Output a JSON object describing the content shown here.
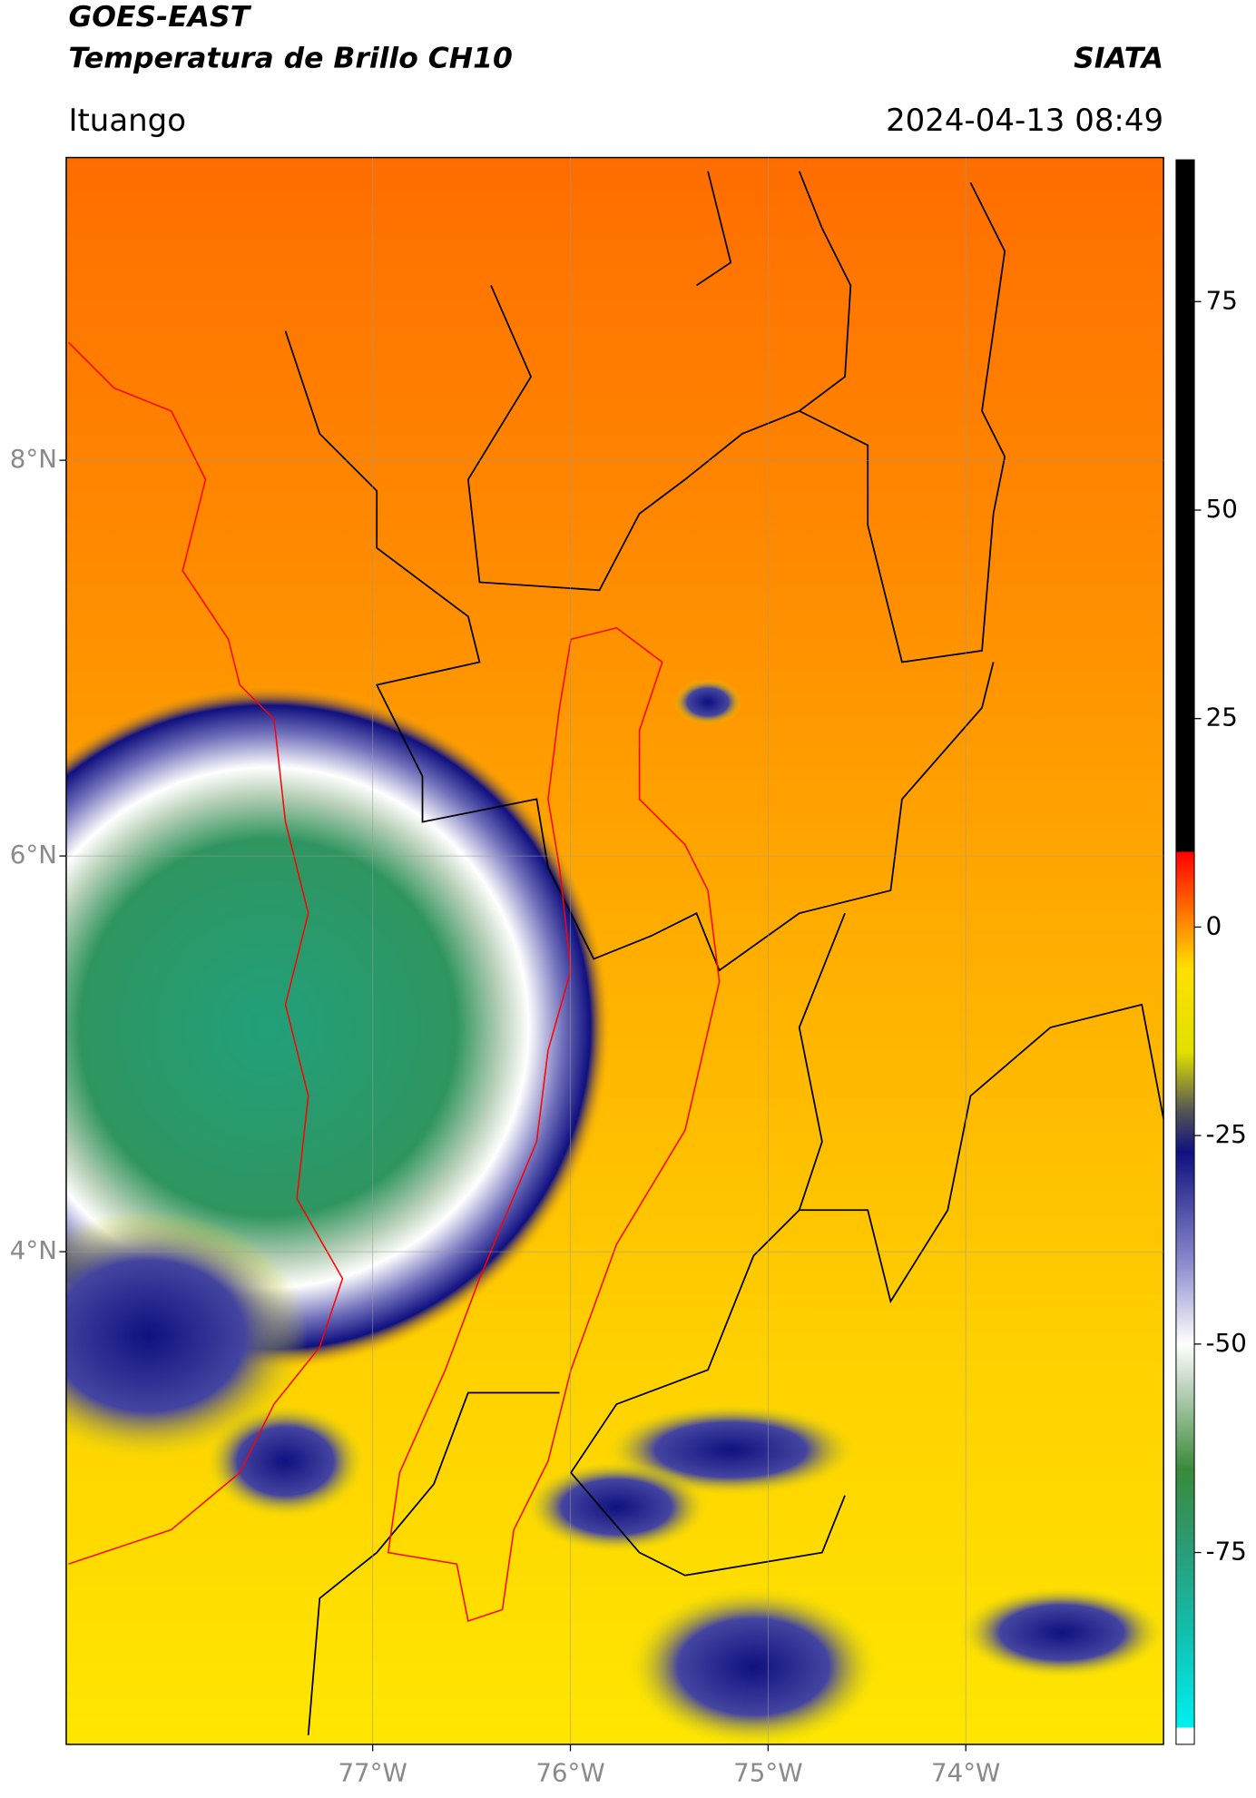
{
  "header": {
    "title": "GOES-EAST",
    "subtitle": "Temperatura de Brillo CH10",
    "source": "SIATA",
    "location": "Ituango",
    "datetime": "2024-04-13 08:49"
  },
  "chart_data": {
    "type": "map",
    "xlim": [
      -78.55,
      -73.0
    ],
    "ylim": [
      1.51,
      9.53
    ],
    "xticks": [
      {
        "value": -77,
        "label": "77°W"
      },
      {
        "value": -76,
        "label": "76°W"
      },
      {
        "value": -75,
        "label": "75°W"
      },
      {
        "value": -74,
        "label": "74°W"
      }
    ],
    "yticks": [
      {
        "value": 4,
        "label": "4°N"
      },
      {
        "value": 6,
        "label": "6°N"
      },
      {
        "value": 8,
        "label": "8°N"
      }
    ],
    "grid": true,
    "clim": [
      -98,
      92
    ],
    "cticks": [
      {
        "value": -75,
        "label": "-75"
      },
      {
        "value": -50,
        "label": "-50"
      },
      {
        "value": -25,
        "label": "-25"
      },
      0,
      25,
      50,
      75
    ],
    "colormap": [
      {
        "value": -98,
        "color": "#ffffff"
      },
      {
        "value": -96,
        "color": "#ffffff"
      },
      {
        "value": -96,
        "color": "#00f0f0"
      },
      {
        "value": -85,
        "color": "#12c0b0"
      },
      {
        "value": -75,
        "color": "#2a9d7a"
      },
      {
        "value": -65,
        "color": "#3a8a3a"
      },
      {
        "value": -55,
        "color": "#c0d4c0"
      },
      {
        "value": -50,
        "color": "#ffffff"
      },
      {
        "value": -40,
        "color": "#8888cc"
      },
      {
        "value": -27,
        "color": "#101080"
      },
      {
        "value": -22,
        "color": "#555555"
      },
      {
        "value": -15,
        "color": "#e0e000"
      },
      {
        "value": -5,
        "color": "#ffe000"
      },
      {
        "value": 0,
        "color": "#ff9000"
      },
      {
        "value": 7,
        "color": "#ff2000"
      },
      {
        "value": 9,
        "color": "#ff0000"
      },
      {
        "value": 9,
        "color": "#000000"
      },
      {
        "value": 92,
        "color": "#000000"
      }
    ]
  }
}
